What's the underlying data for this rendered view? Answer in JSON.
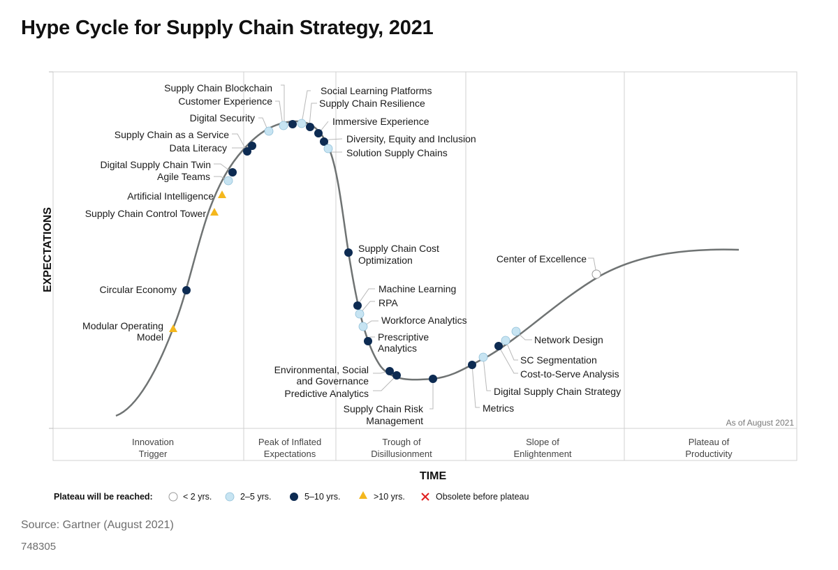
{
  "title": "Hype Cycle for Supply Chain Strategy, 2021",
  "y_axis_label": "EXPECTATIONS",
  "x_axis_label": "TIME",
  "as_of": "As of August 2021",
  "phases": [
    {
      "line1": "Innovation",
      "line2": "Trigger"
    },
    {
      "line1": "Peak of Inflated",
      "line2": "Expectations"
    },
    {
      "line1": "Trough of",
      "line2": "Disillusionment"
    },
    {
      "line1": "Slope of",
      "line2": "Enlightenment"
    },
    {
      "line1": "Plateau of",
      "line2": "Productivity"
    }
  ],
  "legend": {
    "title": "Plateau will be reached:",
    "items": [
      {
        "key": "lt2",
        "label": "< 2 yrs."
      },
      {
        "key": "2to5",
        "label": "2–5 yrs."
      },
      {
        "key": "5to10",
        "label": "5–10 yrs."
      },
      {
        "key": "gt10",
        "label": ">10 yrs."
      },
      {
        "key": "obsolete",
        "label": "Obsolete before plateau"
      }
    ]
  },
  "colors": {
    "lt2": "#ffffff",
    "2to5": "#c7e4f2",
    "5to10": "#0d2b52",
    "gt10": "#f4b71d",
    "obsolete": "#e02020",
    "curve": "#6f7373",
    "grid": "#d0d0d0"
  },
  "technologies": [
    {
      "name": "Modular Operating Model",
      "plateau": "gt10"
    },
    {
      "name": "Circular Economy",
      "plateau": "5to10"
    },
    {
      "name": "Supply Chain Control Tower",
      "plateau": "gt10"
    },
    {
      "name": "Artificial Intelligence",
      "plateau": "gt10"
    },
    {
      "name": "Agile Teams",
      "plateau": "2to5"
    },
    {
      "name": "Digital Supply Chain Twin",
      "plateau": "5to10"
    },
    {
      "name": "Data Literacy",
      "plateau": "5to10"
    },
    {
      "name": "Supply Chain as a Service",
      "plateau": "5to10"
    },
    {
      "name": "Digital Security",
      "plateau": "2to5"
    },
    {
      "name": "Customer Experience",
      "plateau": "2to5"
    },
    {
      "name": "Supply Chain Blockchain",
      "plateau": "5to10"
    },
    {
      "name": "Social Learning Platforms",
      "plateau": "2to5"
    },
    {
      "name": "Supply Chain Resilience",
      "plateau": "5to10"
    },
    {
      "name": "Immersive Experience",
      "plateau": "5to10"
    },
    {
      "name": "Diversity, Equity and Inclusion",
      "plateau": "5to10"
    },
    {
      "name": "Solution Supply Chains",
      "plateau": "2to5"
    },
    {
      "name": "Supply Chain Cost Optimization",
      "plateau": "5to10"
    },
    {
      "name": "Machine Learning",
      "plateau": "5to10"
    },
    {
      "name": "RPA",
      "plateau": "2to5"
    },
    {
      "name": "Workforce Analytics",
      "plateau": "2to5"
    },
    {
      "name": "Prescriptive Analytics",
      "plateau": "5to10"
    },
    {
      "name": "Environmental, Social and Governance",
      "plateau": "5to10"
    },
    {
      "name": "Predictive Analytics",
      "plateau": "5to10"
    },
    {
      "name": "Supply Chain Risk Management",
      "plateau": "5to10"
    },
    {
      "name": "Metrics",
      "plateau": "5to10"
    },
    {
      "name": "Digital Supply Chain Strategy",
      "plateau": "2to5"
    },
    {
      "name": "Cost-to-Serve Analysis",
      "plateau": "5to10"
    },
    {
      "name": "SC Segmentation",
      "plateau": "2to5"
    },
    {
      "name": "Network Design",
      "plateau": "2to5"
    },
    {
      "name": "Center of Excellence",
      "plateau": "lt2"
    }
  ],
  "source": "Source: Gartner (August 2021)",
  "doc_id": "748305"
}
